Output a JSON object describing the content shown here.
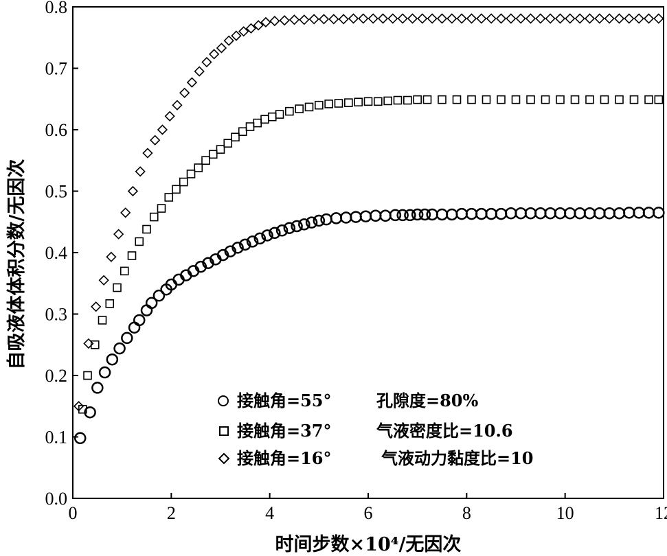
{
  "chart_data": {
    "type": "scatter",
    "xlabel": "时间步数×10⁴/无因次",
    "ylabel": "自吸液体体积分数/无因次",
    "xlim": [
      0,
      12
    ],
    "ylim": [
      0,
      0.8
    ],
    "xticks": [
      "0",
      "2",
      "4",
      "6",
      "8",
      "10",
      "12"
    ],
    "yticks": [
      "0.0",
      "0.1",
      "0.2",
      "0.3",
      "0.4",
      "0.5",
      "0.6",
      "0.7",
      "0.8"
    ],
    "grid": false,
    "legend_position": "bottom-center",
    "series": [
      {
        "name": "接触角=55°",
        "marker": "circle",
        "color": "#000000",
        "x": [
          0.15,
          0.35,
          0.5,
          0.65,
          0.8,
          0.95,
          1.1,
          1.25,
          1.35,
          1.5,
          1.6,
          1.75,
          1.9,
          2.0,
          2.15,
          2.3,
          2.45,
          2.6,
          2.75,
          2.9,
          3.05,
          3.2,
          3.35,
          3.5,
          3.65,
          3.8,
          3.95,
          4.1,
          4.25,
          4.4,
          4.55,
          4.7,
          4.85,
          5.0,
          5.15,
          5.35,
          5.55,
          5.75,
          5.95,
          6.15,
          6.35,
          6.55,
          6.7,
          6.85,
          7.0,
          7.15,
          7.3,
          7.5,
          7.7,
          7.9,
          8.1,
          8.3,
          8.5,
          8.7,
          8.9,
          9.1,
          9.3,
          9.5,
          9.7,
          9.9,
          10.1,
          10.3,
          10.5,
          10.7,
          10.9,
          11.1,
          11.3,
          11.5,
          11.7,
          11.9
        ],
        "y": [
          0.098,
          0.14,
          0.18,
          0.205,
          0.226,
          0.244,
          0.261,
          0.278,
          0.29,
          0.306,
          0.318,
          0.33,
          0.34,
          0.348,
          0.356,
          0.363,
          0.37,
          0.377,
          0.383,
          0.389,
          0.396,
          0.402,
          0.408,
          0.413,
          0.418,
          0.423,
          0.428,
          0.432,
          0.436,
          0.44,
          0.443,
          0.446,
          0.449,
          0.452,
          0.454,
          0.456,
          0.457,
          0.458,
          0.459,
          0.46,
          0.46,
          0.461,
          0.461,
          0.461,
          0.462,
          0.462,
          0.462,
          0.462,
          0.462,
          0.463,
          0.463,
          0.463,
          0.463,
          0.463,
          0.464,
          0.464,
          0.464,
          0.464,
          0.464,
          0.464,
          0.464,
          0.464,
          0.464,
          0.464,
          0.464,
          0.464,
          0.465,
          0.465,
          0.465,
          0.465
        ]
      },
      {
        "name": "接触角=37°",
        "marker": "square",
        "color": "#000000",
        "x": [
          0.2,
          0.3,
          0.45,
          0.6,
          0.75,
          0.9,
          1.05,
          1.2,
          1.35,
          1.5,
          1.65,
          1.8,
          1.95,
          2.1,
          2.25,
          2.4,
          2.55,
          2.7,
          2.85,
          3.0,
          3.15,
          3.3,
          3.45,
          3.6,
          3.75,
          3.9,
          4.05,
          4.2,
          4.4,
          4.6,
          4.8,
          5.0,
          5.2,
          5.4,
          5.6,
          5.8,
          6.0,
          6.2,
          6.4,
          6.6,
          6.8,
          7.0,
          7.2,
          7.5,
          7.8,
          8.1,
          8.4,
          8.7,
          9.0,
          9.3,
          9.6,
          9.9,
          10.2,
          10.5,
          10.8,
          11.1,
          11.4,
          11.7,
          11.9
        ],
        "y": [
          0.145,
          0.2,
          0.25,
          0.29,
          0.317,
          0.343,
          0.37,
          0.395,
          0.418,
          0.438,
          0.458,
          0.472,
          0.49,
          0.503,
          0.515,
          0.528,
          0.538,
          0.55,
          0.56,
          0.568,
          0.578,
          0.588,
          0.597,
          0.605,
          0.611,
          0.617,
          0.621,
          0.625,
          0.63,
          0.634,
          0.637,
          0.64,
          0.642,
          0.643,
          0.644,
          0.645,
          0.646,
          0.646,
          0.647,
          0.648,
          0.648,
          0.649,
          0.649,
          0.649,
          0.649,
          0.649,
          0.649,
          0.649,
          0.649,
          0.649,
          0.649,
          0.649,
          0.649,
          0.649,
          0.649,
          0.649,
          0.649,
          0.649,
          0.649
        ]
      },
      {
        "name": "接触角=16°",
        "marker": "diamond",
        "color": "#000000",
        "x": [
          0.12,
          0.32,
          0.47,
          0.63,
          0.78,
          0.93,
          1.07,
          1.22,
          1.37,
          1.52,
          1.67,
          1.82,
          1.97,
          2.12,
          2.27,
          2.42,
          2.57,
          2.72,
          2.87,
          3.02,
          3.17,
          3.32,
          3.47,
          3.62,
          3.77,
          3.92,
          4.1,
          4.3,
          4.5,
          4.7,
          4.9,
          5.1,
          5.3,
          5.5,
          5.7,
          5.9,
          6.1,
          6.3,
          6.5,
          6.7,
          6.9,
          7.1,
          7.3,
          7.5,
          7.7,
          7.9,
          8.1,
          8.3,
          8.5,
          8.7,
          8.9,
          9.1,
          9.3,
          9.5,
          9.7,
          9.9,
          10.1,
          10.3,
          10.5,
          10.7,
          10.9,
          11.1,
          11.3,
          11.5,
          11.7,
          11.9
        ],
        "y": [
          0.15,
          0.252,
          0.312,
          0.355,
          0.393,
          0.43,
          0.465,
          0.5,
          0.532,
          0.562,
          0.583,
          0.6,
          0.622,
          0.64,
          0.66,
          0.677,
          0.695,
          0.71,
          0.723,
          0.733,
          0.745,
          0.753,
          0.76,
          0.765,
          0.77,
          0.775,
          0.777,
          0.778,
          0.779,
          0.779,
          0.78,
          0.78,
          0.78,
          0.78,
          0.781,
          0.781,
          0.781,
          0.781,
          0.781,
          0.781,
          0.781,
          0.781,
          0.781,
          0.781,
          0.781,
          0.781,
          0.781,
          0.781,
          0.781,
          0.781,
          0.781,
          0.781,
          0.781,
          0.781,
          0.781,
          0.781,
          0.781,
          0.781,
          0.781,
          0.781,
          0.781,
          0.781,
          0.781,
          0.781,
          0.781,
          0.781
        ]
      }
    ],
    "legend_extras": [
      "孔隙度=80%",
      "气液密度比=10.6",
      "气液动力黏度比=10"
    ]
  }
}
